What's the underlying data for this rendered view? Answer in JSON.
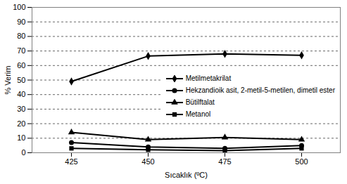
{
  "chart_data": {
    "type": "line",
    "x_label": "Sıcaklık (ºC)",
    "y_label": "% Verim",
    "categories": [
      "425",
      "450",
      "475",
      "500"
    ],
    "ylim": [
      0,
      100
    ],
    "yticks": [
      0,
      10,
      20,
      30,
      40,
      50,
      60,
      70,
      80,
      90,
      100
    ],
    "grid": true,
    "legend": "right",
    "series": [
      {
        "name": "Metilmetakrilat",
        "color": "#000000",
        "marker": "diamond",
        "values": [
          49,
          66.5,
          68,
          67
        ]
      },
      {
        "name": "Hekzandioik asit, 2-metil-5-metilen, dimetil ester",
        "color": "#000000",
        "marker": "circle",
        "values": [
          7,
          4,
          3,
          5
        ]
      },
      {
        "name": "Bütilftalat",
        "color": "#000000",
        "marker": "triangle",
        "values": [
          14,
          9,
          10.5,
          9
        ]
      },
      {
        "name": "Metanol",
        "color": "#000000",
        "marker": "square",
        "values": [
          3,
          2,
          1.5,
          3
        ]
      }
    ]
  }
}
